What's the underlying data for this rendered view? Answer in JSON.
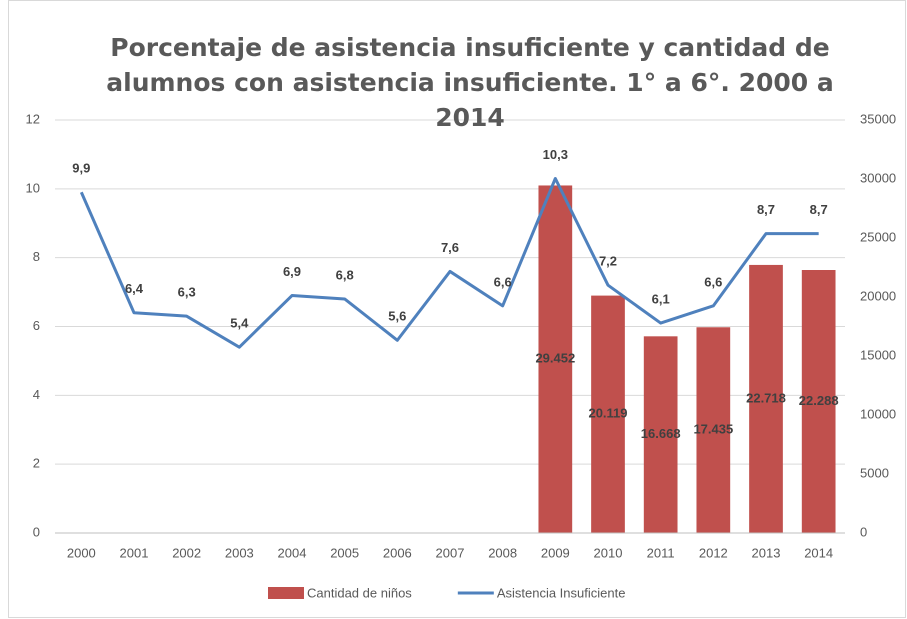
{
  "chart_data": {
    "type": "combo",
    "title": "Porcentaje de asistencia insuficiente y cantidad de alumnos con asistencia insuficiente. 1° a 6°. 2000 a 2014",
    "categories": [
      "2000",
      "2001",
      "2002",
      "2003",
      "2004",
      "2005",
      "2006",
      "2007",
      "2008",
      "2009",
      "2010",
      "2011",
      "2012",
      "2013",
      "2014"
    ],
    "series": [
      {
        "name": "Cantidad de niños",
        "type": "bar",
        "axis": "y2",
        "color": "#c0504d",
        "values": [
          null,
          null,
          null,
          null,
          null,
          null,
          null,
          null,
          null,
          29452,
          20119,
          16668,
          17435,
          22718,
          22288
        ],
        "value_labels": [
          null,
          null,
          null,
          null,
          null,
          null,
          null,
          null,
          null,
          "29.452",
          "20.119",
          "16.668",
          "17.435",
          "22.718",
          "22.288"
        ]
      },
      {
        "name": "Asistencia Insuficiente",
        "type": "line",
        "axis": "y",
        "color": "#4f81bd",
        "values": [
          9.9,
          6.4,
          6.3,
          5.4,
          6.9,
          6.8,
          5.6,
          7.6,
          6.6,
          10.3,
          7.2,
          6.1,
          6.6,
          8.7,
          8.7
        ],
        "value_labels": [
          "9,9",
          "6,4",
          "6,3",
          "5,4",
          "6,9",
          "6,8",
          "5,6",
          "7,6",
          "6,6",
          "10,3",
          "7,2",
          "6,1",
          "6,6",
          "8,7",
          "8,7"
        ]
      }
    ],
    "ylim": [
      0,
      12
    ],
    "yticks": [
      0,
      2,
      4,
      6,
      8,
      10,
      12
    ],
    "y2lim": [
      0,
      35000
    ],
    "y2ticks": [
      0,
      5000,
      10000,
      15000,
      20000,
      25000,
      30000,
      35000
    ],
    "grid": true,
    "legend": "bottom"
  }
}
